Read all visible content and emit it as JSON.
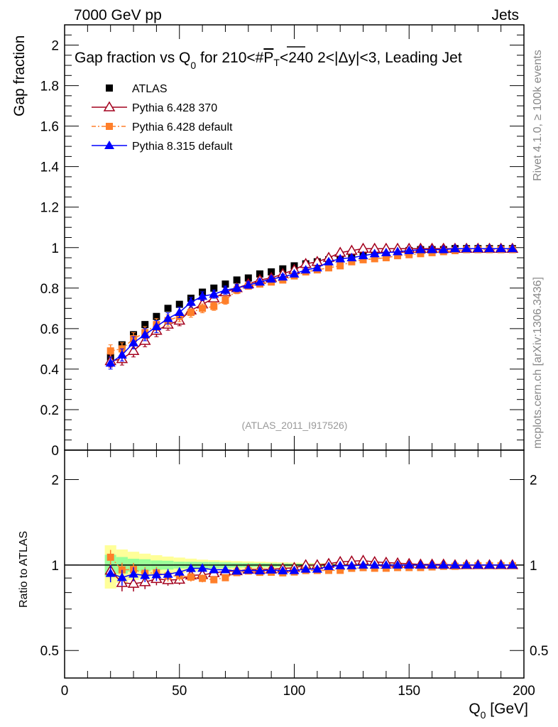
{
  "header": {
    "left": "7000 GeV pp",
    "right": "Jets"
  },
  "side_labels": {
    "top": "Rivet 4.1.0, ≥ 100k events",
    "bottom": "mcplots.cern.ch [arXiv:1306.3436]"
  },
  "analysis_id": "(ATLAS_2011_I917526)",
  "chart_data": {
    "type": "scatter",
    "title": "Gap fraction vs Q_0 for 210<#P_T<240  2<|Δy|<3, Leading Jet",
    "title_parts": {
      "a": "Gap fraction vs Q",
      "sub": "0",
      "b": " for 210<#",
      "over": "P",
      "sub2": "T",
      "c": "<240  2<|Δy|<3, Leading Jet"
    },
    "xlabel": "Q_0 [GeV]",
    "xlabel_parts": {
      "a": "Q",
      "sub": "0",
      "b": " [GeV]"
    },
    "ylabel": "Gap fraction",
    "ratio_ylabel": "Ratio to ATLAS",
    "xlim": [
      0,
      200
    ],
    "ylim": [
      0,
      2.1
    ],
    "ratio_ylim": [
      0.4,
      2.54
    ],
    "ratio_scale": "log",
    "xticks": [
      0,
      50,
      100,
      150,
      200
    ],
    "xtick_labels": [
      "0",
      "50",
      "100",
      "150",
      "200"
    ],
    "yticks": [
      0,
      0.2,
      0.4,
      0.6,
      0.8,
      1,
      1.2,
      1.4,
      1.6,
      1.8,
      2
    ],
    "ytick_labels": [
      "0",
      "0.2",
      "0.4",
      "0.6",
      "0.8",
      "1",
      "1.2",
      "1.4",
      "1.6",
      "1.8",
      "2"
    ],
    "ratio_yticks": [
      0.5,
      1,
      2
    ],
    "ratio_ytick_labels": [
      "0.5",
      "1",
      "2"
    ],
    "legend_position": "top-left",
    "x": [
      20,
      25,
      30,
      35,
      40,
      45,
      50,
      55,
      60,
      65,
      70,
      75,
      80,
      85,
      90,
      95,
      100,
      105,
      110,
      115,
      120,
      125,
      130,
      135,
      140,
      145,
      150,
      155,
      160,
      165,
      170,
      175,
      180,
      185,
      190,
      195
    ],
    "series": [
      {
        "name": "ATLAS",
        "color": "#000000",
        "marker": "square",
        "values": [
          0.46,
          0.52,
          0.57,
          0.62,
          0.66,
          0.7,
          0.72,
          0.75,
          0.78,
          0.8,
          0.82,
          0.84,
          0.85,
          0.87,
          0.88,
          0.895,
          0.91,
          0.92,
          0.93,
          0.94,
          0.95,
          0.955,
          0.96,
          0.97,
          0.975,
          0.98,
          0.985,
          0.99,
          0.99,
          0.99,
          0.995,
          0.995,
          0.995,
          0.995,
          0.995,
          0.995
        ],
        "band_inner": [
          0.04,
          0.035,
          0.03,
          0.03,
          0.025,
          0.025,
          0.02,
          0.02,
          0.02,
          0.02,
          0.018,
          0.016,
          0.015,
          0.014,
          0.013,
          0.012,
          0.011,
          0.01,
          0.01,
          0.009,
          0.008,
          0.008,
          0.007,
          0.006,
          0.006,
          0.005,
          0.005,
          0.004,
          0.004,
          0.004,
          0.003,
          0.003,
          0.003,
          0.003,
          0.003,
          0.003
        ],
        "band_outer": [
          0.08,
          0.07,
          0.065,
          0.06,
          0.055,
          0.05,
          0.045,
          0.04,
          0.035,
          0.032,
          0.03,
          0.028,
          0.026,
          0.024,
          0.022,
          0.02,
          0.018,
          0.016,
          0.015,
          0.014,
          0.012,
          0.011,
          0.01,
          0.009,
          0.008,
          0.007,
          0.006,
          0.006,
          0.005,
          0.005,
          0.005,
          0.004,
          0.004,
          0.004,
          0.004,
          0.004
        ]
      },
      {
        "name": "Pythia 6.428 370",
        "color": "#a3001d",
        "marker": "open-triangle",
        "line": "solid",
        "values": [
          0.44,
          0.45,
          0.49,
          0.54,
          0.59,
          0.62,
          0.64,
          0.69,
          0.72,
          0.75,
          0.78,
          0.8,
          0.82,
          0.84,
          0.85,
          0.87,
          0.89,
          0.92,
          0.93,
          0.95,
          0.975,
          0.985,
          0.995,
          0.995,
          0.995,
          0.995,
          0.995,
          0.995,
          0.995,
          0.995,
          0.995,
          0.995,
          0.995,
          0.995,
          0.995,
          0.995
        ],
        "errors": [
          0.03,
          0.03,
          0.03,
          0.03,
          0.03,
          0.028,
          0.026,
          0.024,
          0.022,
          0.02,
          0.02,
          0.018,
          0.016,
          0.015,
          0.014,
          0.013,
          0.012,
          0.011,
          0.01,
          0.009,
          0.008,
          0.008,
          0.007,
          0.006,
          0.006,
          0.005,
          0.005,
          0.004,
          0.004,
          0.004,
          0.003,
          0.003,
          0.003,
          0.003,
          0.003,
          0.003
        ]
      },
      {
        "name": "Pythia 6.428 default",
        "color": "#ff7f2a",
        "marker": "square",
        "line": "dashdot",
        "values": [
          0.49,
          0.5,
          0.55,
          0.58,
          0.62,
          0.64,
          0.66,
          0.68,
          0.7,
          0.71,
          0.74,
          0.79,
          0.81,
          0.82,
          0.83,
          0.84,
          0.86,
          0.88,
          0.89,
          0.9,
          0.91,
          0.93,
          0.94,
          0.945,
          0.95,
          0.96,
          0.965,
          0.97,
          0.975,
          0.98,
          0.985,
          0.99,
          0.99,
          0.99,
          0.99,
          0.99
        ],
        "errors": [
          0.03,
          0.03,
          0.03,
          0.03,
          0.03,
          0.028,
          0.026,
          0.024,
          0.022,
          0.02,
          0.02,
          0.018,
          0.016,
          0.015,
          0.014,
          0.013,
          0.012,
          0.011,
          0.01,
          0.009,
          0.008,
          0.008,
          0.007,
          0.006,
          0.006,
          0.005,
          0.005,
          0.004,
          0.004,
          0.004,
          0.003,
          0.003,
          0.003,
          0.003,
          0.003,
          0.003
        ]
      },
      {
        "name": "Pythia 8.315 default",
        "color": "#0000ff",
        "marker": "triangle",
        "line": "solid",
        "values": [
          0.43,
          0.47,
          0.53,
          0.57,
          0.61,
          0.65,
          0.68,
          0.73,
          0.76,
          0.77,
          0.79,
          0.8,
          0.815,
          0.83,
          0.845,
          0.855,
          0.87,
          0.89,
          0.9,
          0.93,
          0.945,
          0.95,
          0.96,
          0.97,
          0.975,
          0.98,
          0.985,
          0.99,
          0.99,
          0.99,
          0.995,
          0.995,
          0.995,
          0.995,
          0.995,
          0.995
        ],
        "errors": [
          0.03,
          0.03,
          0.03,
          0.03,
          0.03,
          0.028,
          0.026,
          0.024,
          0.022,
          0.02,
          0.02,
          0.018,
          0.016,
          0.015,
          0.014,
          0.013,
          0.012,
          0.011,
          0.01,
          0.009,
          0.008,
          0.008,
          0.007,
          0.006,
          0.006,
          0.005,
          0.005,
          0.004,
          0.004,
          0.004,
          0.003,
          0.003,
          0.003,
          0.003,
          0.003,
          0.003
        ]
      }
    ]
  }
}
